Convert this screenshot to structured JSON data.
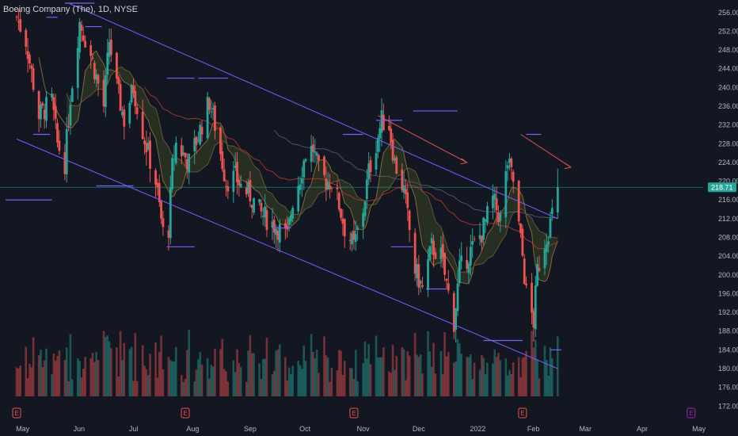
{
  "header": {
    "title": "Boeing Company (The), 1D, NYSE"
  },
  "colors": {
    "background": "#131722",
    "up": "#26a69a",
    "down": "#ef5350",
    "channel": "#7b5cff",
    "ma_red": "#c0392b",
    "band_fill": "#2f3a22",
    "price_line": "#26a69a",
    "earnings": "#ef5350",
    "earnings_future": "#9c27b0"
  },
  "chart_data": {
    "type": "candlestick",
    "symbol": "BA",
    "interval": "1D",
    "exchange": "NYSE",
    "last_price": 218.7,
    "last_price_label": "218.71",
    "ylim": [
      169,
      258
    ],
    "y_ticks": [
      "256.00",
      "252.00",
      "248.00",
      "244.00",
      "240.00",
      "236.00",
      "232.00",
      "228.00",
      "224.00",
      "220.00",
      "216.00",
      "212.00",
      "208.00",
      "204.00",
      "200.00",
      "196.00",
      "192.00",
      "188.00",
      "184.00",
      "180.00",
      "176.00",
      "172.00"
    ],
    "x_labels": [
      "May",
      "Jun",
      "Jul",
      "Aug",
      "Sep",
      "Oct",
      "Nov",
      "Dec",
      "2022",
      "Feb",
      "Mar",
      "Apr",
      "May"
    ],
    "price_path": [
      [
        "2021-04-28",
        255
      ],
      [
        "2021-05-03",
        250
      ],
      [
        "2021-05-10",
        234
      ],
      [
        "2021-05-17",
        237
      ],
      [
        "2021-05-20",
        228
      ],
      [
        "2021-05-24",
        224
      ],
      [
        "2021-05-27",
        238
      ],
      [
        "2021-06-01",
        254
      ],
      [
        "2021-06-07",
        247
      ],
      [
        "2021-06-14",
        236
      ],
      [
        "2021-06-17",
        250
      ],
      [
        "2021-06-21",
        240
      ],
      [
        "2021-06-25",
        233
      ],
      [
        "2021-06-30",
        240
      ],
      [
        "2021-07-06",
        229
      ],
      [
        "2021-07-12",
        220
      ],
      [
        "2021-07-16",
        209
      ],
      [
        "2021-07-19",
        210
      ],
      [
        "2021-07-21",
        223
      ],
      [
        "2021-07-23",
        228
      ],
      [
        "2021-07-30",
        224
      ],
      [
        "2021-08-05",
        231
      ],
      [
        "2021-08-10",
        237
      ],
      [
        "2021-08-13",
        232
      ],
      [
        "2021-08-19",
        220
      ],
      [
        "2021-08-24",
        221
      ],
      [
        "2021-08-27",
        219
      ],
      [
        "2021-09-01",
        217
      ],
      [
        "2021-09-07",
        213
      ],
      [
        "2021-09-10",
        212
      ],
      [
        "2021-09-16",
        210
      ],
      [
        "2021-09-21",
        208
      ],
      [
        "2021-09-24",
        216
      ],
      [
        "2021-09-28",
        221
      ],
      [
        "2021-10-01",
        226
      ],
      [
        "2021-10-05",
        227
      ],
      [
        "2021-10-08",
        222
      ],
      [
        "2021-10-12",
        220
      ],
      [
        "2021-10-15",
        220
      ],
      [
        "2021-10-19",
        215
      ],
      [
        "2021-10-22",
        210
      ],
      [
        "2021-10-27",
        206
      ],
      [
        "2021-11-01",
        214
      ],
      [
        "2021-11-04",
        222
      ],
      [
        "2021-11-08",
        228
      ],
      [
        "2021-11-11",
        233
      ],
      [
        "2021-11-15",
        232
      ],
      [
        "2021-11-18",
        224
      ],
      [
        "2021-11-23",
        218
      ],
      [
        "2021-11-29",
        201
      ],
      [
        "2021-12-01",
        199
      ],
      [
        "2021-12-03",
        197
      ],
      [
        "2021-12-08",
        206
      ],
      [
        "2021-12-13",
        204
      ],
      [
        "2021-12-17",
        196
      ],
      [
        "2021-12-20",
        190
      ],
      [
        "2021-12-23",
        201
      ],
      [
        "2021-12-29",
        205
      ],
      [
        "2022-01-04",
        209
      ],
      [
        "2022-01-10",
        216
      ],
      [
        "2022-01-14",
        212
      ],
      [
        "2022-01-18",
        224
      ],
      [
        "2022-01-21",
        220
      ],
      [
        "2022-01-26",
        204
      ],
      [
        "2022-01-28",
        196
      ],
      [
        "2022-02-01",
        190
      ],
      [
        "2022-02-03",
        201
      ],
      [
        "2022-02-07",
        207
      ],
      [
        "2022-02-10",
        211
      ],
      [
        "2022-02-14",
        218.7
      ]
    ],
    "volume_note": "bars colored by candle direction",
    "channel": {
      "upper": [
        [
          "2021-05-26",
          258
        ],
        [
          "2022-02-14",
          212
        ]
      ],
      "lower": [
        [
          "2021-04-28",
          229
        ],
        [
          "2022-02-14",
          180
        ]
      ]
    },
    "forecast_arrows": [
      [
        [
          "2021-11-09",
          234
        ],
        [
          "2021-12-27",
          224
        ]
      ],
      [
        [
          "2022-01-25",
          230
        ],
        [
          "2022-02-21",
          223
        ]
      ]
    ],
    "horizontal_levels": [
      [
        [
          "2021-05-24",
          258
        ],
        [
          "2021-06-09",
          258
        ]
      ],
      [
        [
          "2021-07-18",
          242
        ],
        [
          "2021-08-02",
          242
        ]
      ],
      [
        [
          "2021-08-04",
          242
        ],
        [
          "2021-08-20",
          242
        ]
      ],
      [
        [
          "2021-06-10",
          219
        ],
        [
          "2021-06-30",
          219
        ]
      ],
      [
        [
          "2021-05-07",
          230
        ],
        [
          "2021-05-16",
          230
        ]
      ],
      [
        [
          "2021-07-18",
          206
        ],
        [
          "2021-08-02",
          206
        ]
      ],
      [
        [
          "2021-09-13",
          210
        ],
        [
          "2021-09-23",
          210
        ]
      ],
      [
        [
          "2021-10-21",
          230
        ],
        [
          "2021-11-01",
          230
        ]
      ],
      [
        [
          "2021-11-08",
          233
        ],
        [
          "2021-11-22",
          233
        ]
      ],
      [
        [
          "2021-11-28",
          235
        ],
        [
          "2021-12-22",
          235
        ]
      ],
      [
        [
          "2021-11-16",
          206
        ],
        [
          "2021-11-28",
          206
        ]
      ],
      [
        [
          "2021-12-05",
          197
        ],
        [
          "2021-12-16",
          197
        ]
      ],
      [
        [
          "2022-01-05",
          186
        ],
        [
          "2022-01-26",
          186
        ]
      ],
      [
        [
          "2022-01-28",
          230
        ],
        [
          "2022-02-05",
          230
        ]
      ],
      [
        [
          "2022-02-10",
          184
        ],
        [
          "2022-02-16",
          184
        ]
      ],
      [
        [
          "2021-04-22",
          216
        ],
        [
          "2021-05-17",
          216
        ]
      ],
      [
        [
          "2021-05-14",
          255
        ],
        [
          "2021-05-20",
          255
        ]
      ],
      [
        [
          "2021-06-04",
          253
        ],
        [
          "2021-06-13",
          253
        ]
      ]
    ],
    "earnings_markers": [
      {
        "date": "2021-04-28",
        "label": "E",
        "kind": "past"
      },
      {
        "date": "2021-07-28",
        "label": "E",
        "kind": "past"
      },
      {
        "date": "2021-10-27",
        "label": "E",
        "kind": "past"
      },
      {
        "date": "2022-01-26",
        "label": "E",
        "kind": "past"
      },
      {
        "date": "2022-04-27",
        "label": "E",
        "kind": "future"
      }
    ],
    "legend": "none",
    "grid": false
  }
}
